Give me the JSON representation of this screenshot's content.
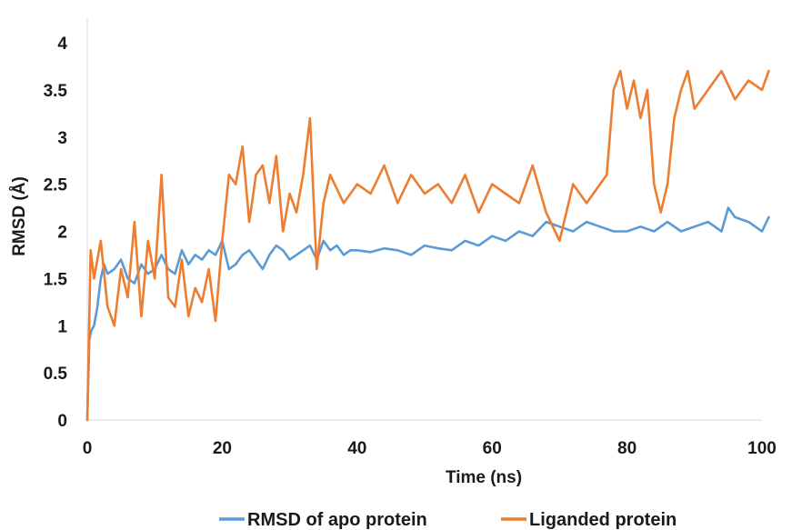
{
  "chart_data": {
    "type": "line",
    "title": "",
    "xlabel": "Time (ns)",
    "ylabel": "RMSD (Å)",
    "xlim": [
      0,
      100
    ],
    "ylim": [
      0,
      4
    ],
    "x_ticks": [
      "0",
      "20",
      "40",
      "60",
      "80",
      "100"
    ],
    "y_ticks": [
      "0",
      "0.5",
      "1",
      "1.5",
      "2",
      "2.5",
      "3",
      "3.5",
      "4"
    ],
    "grid": false,
    "legend_position": "bottom",
    "series": [
      {
        "name": "RMSD of apo protein",
        "color": "#5b9bd5",
        "x": [
          0,
          0.3,
          0.6,
          1,
          1.5,
          2,
          2.5,
          3,
          4,
          5,
          6,
          7,
          8,
          9,
          10,
          11,
          12,
          13,
          14,
          15,
          16,
          17,
          18,
          19,
          20,
          21,
          22,
          23,
          24,
          25,
          26,
          27,
          28,
          29,
          30,
          31,
          32,
          33,
          34,
          35,
          36,
          37,
          38,
          39,
          40,
          42,
          44,
          46,
          48,
          50,
          52,
          54,
          56,
          58,
          60,
          62,
          64,
          66,
          68,
          70,
          72,
          74,
          76,
          78,
          80,
          82,
          84,
          86,
          88,
          90,
          92,
          94,
          95,
          96,
          98,
          100,
          101
        ],
        "y": [
          0,
          0.85,
          0.95,
          1.0,
          1.2,
          1.5,
          1.65,
          1.55,
          1.6,
          1.7,
          1.5,
          1.45,
          1.65,
          1.55,
          1.6,
          1.75,
          1.6,
          1.55,
          1.8,
          1.65,
          1.75,
          1.7,
          1.8,
          1.75,
          1.9,
          1.6,
          1.65,
          1.75,
          1.8,
          1.7,
          1.6,
          1.75,
          1.85,
          1.8,
          1.7,
          1.75,
          1.8,
          1.85,
          1.7,
          1.9,
          1.8,
          1.85,
          1.75,
          1.8,
          1.8,
          1.78,
          1.82,
          1.8,
          1.75,
          1.85,
          1.82,
          1.8,
          1.9,
          1.85,
          1.95,
          1.9,
          2.0,
          1.95,
          2.1,
          2.05,
          2.0,
          2.1,
          2.05,
          2.0,
          2.0,
          2.05,
          2.0,
          2.1,
          2.0,
          2.05,
          2.1,
          2.0,
          2.25,
          2.15,
          2.1,
          2.0,
          2.15
        ]
      },
      {
        "name": "Liganded protein",
        "color": "#ed7d31",
        "x": [
          0,
          0.5,
          1,
          2,
          3,
          4,
          5,
          6,
          7,
          8,
          9,
          10,
          11,
          12,
          13,
          14,
          15,
          16,
          17,
          18,
          19,
          20,
          21,
          22,
          23,
          24,
          25,
          26,
          27,
          28,
          29,
          30,
          31,
          32,
          33,
          34,
          35,
          36,
          38,
          40,
          42,
          44,
          46,
          48,
          50,
          52,
          54,
          56,
          58,
          60,
          62,
          64,
          66,
          68,
          70,
          72,
          74,
          76,
          77,
          78,
          79,
          80,
          81,
          82,
          83,
          84,
          85,
          86,
          87,
          88,
          89,
          90,
          92,
          94,
          96,
          98,
          100,
          101
        ],
        "y": [
          0,
          1.8,
          1.5,
          1.9,
          1.2,
          1.0,
          1.6,
          1.3,
          2.1,
          1.1,
          1.9,
          1.5,
          2.6,
          1.3,
          1.2,
          1.7,
          1.1,
          1.4,
          1.25,
          1.6,
          1.05,
          1.9,
          2.6,
          2.5,
          2.9,
          2.1,
          2.6,
          2.7,
          2.3,
          2.8,
          2.0,
          2.4,
          2.2,
          2.6,
          3.2,
          1.6,
          2.3,
          2.6,
          2.3,
          2.5,
          2.4,
          2.7,
          2.3,
          2.6,
          2.4,
          2.5,
          2.3,
          2.6,
          2.2,
          2.5,
          2.4,
          2.3,
          2.7,
          2.2,
          1.9,
          2.5,
          2.3,
          2.5,
          2.6,
          3.5,
          3.7,
          3.3,
          3.6,
          3.2,
          3.5,
          2.5,
          2.2,
          2.5,
          3.2,
          3.5,
          3.7,
          3.3,
          3.5,
          3.7,
          3.4,
          3.6,
          3.5,
          3.7
        ]
      }
    ]
  }
}
